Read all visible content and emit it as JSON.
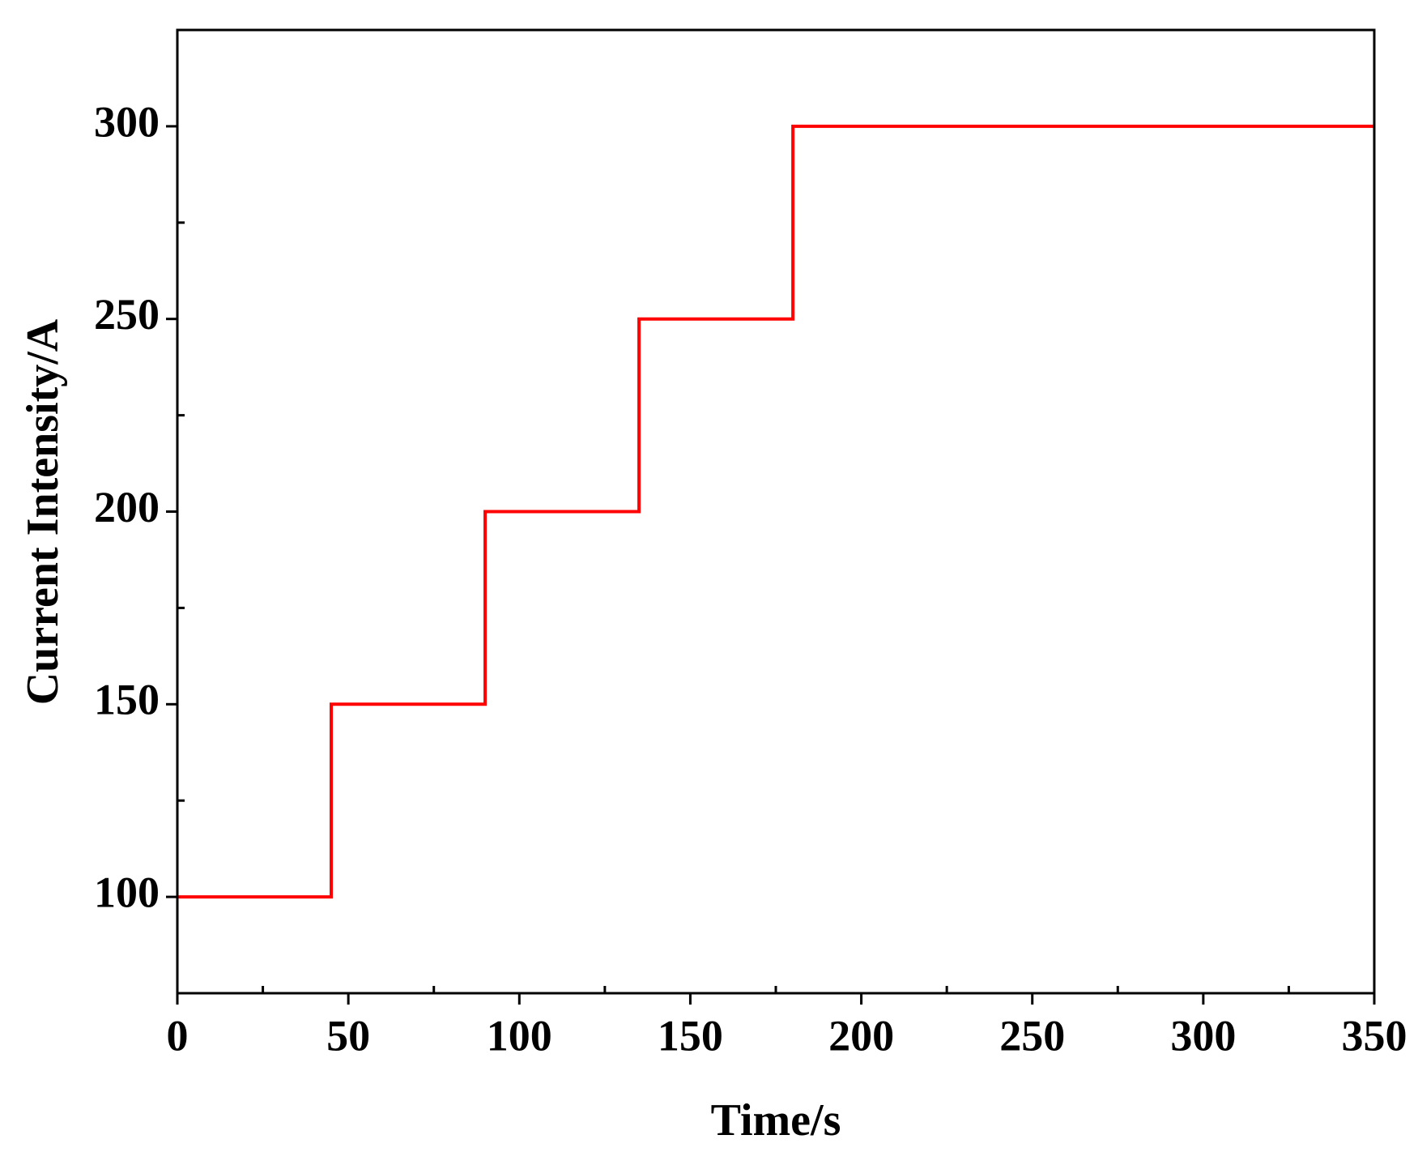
{
  "chart_data": {
    "type": "line",
    "x_label": "Time/s",
    "y_label": "Current Intensity/A",
    "series": [
      {
        "color": "#ff0000",
        "x": [
          0,
          45,
          45,
          90,
          90,
          135,
          135,
          180,
          180,
          350
        ],
        "values": [
          100,
          100,
          150,
          150,
          200,
          200,
          250,
          250,
          300,
          300
        ]
      }
    ],
    "xlim": [
      0,
      350
    ],
    "xticks": [
      0,
      50,
      100,
      150,
      200,
      250,
      300,
      350
    ],
    "xminorticks": [
      25,
      75,
      125,
      175,
      225,
      275,
      325
    ],
    "ylim": [
      75,
      325
    ],
    "yticks": [
      100,
      150,
      200,
      250,
      300
    ],
    "yminorticks": [
      125,
      175,
      225,
      275
    ]
  }
}
